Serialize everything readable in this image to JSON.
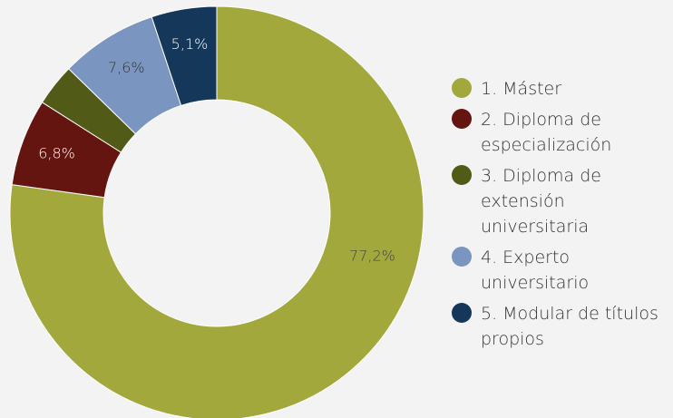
{
  "chart_data": {
    "type": "pie",
    "donut": true,
    "categories": [
      "1. Máster",
      "2. Diploma de especialización",
      "3. Diploma de extensión universitaria",
      "4. Experto universitario",
      "5. Modular de títulos propios"
    ],
    "values": [
      77.2,
      6.8,
      3.3,
      7.6,
      5.1
    ],
    "data_labels": [
      "77,2%",
      "6,8%",
      "",
      "7,6%",
      "5,1%"
    ],
    "colors": [
      "#a2a83c",
      "#65150f",
      "#525a17",
      "#7a96c0",
      "#153759"
    ],
    "label_colors": [
      "#444444",
      "#ffffff",
      "#ffffff",
      "#333333",
      "#ffffff"
    ],
    "legend_position": "right",
    "title": "",
    "xlabel": "",
    "ylabel": ""
  }
}
